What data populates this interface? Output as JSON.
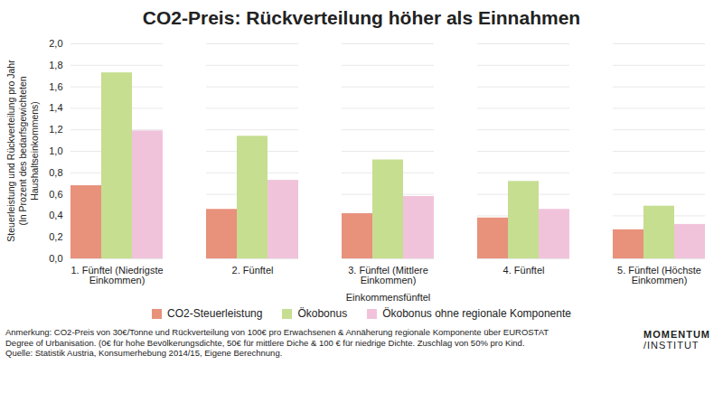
{
  "chart_data": {
    "type": "bar",
    "title": "CO2-Preis: Rückverteilung höher als Einnahmen",
    "y_label": "Steuerleistung und Rückverteilung pro Jahr\n(In Prozent des bedarfsgewichteten Haushaltseinkommens)",
    "x_label": "Einkommensfünftel",
    "categories": [
      "1. Fünftel (Niedrigste Einkommen)",
      "2. Fünftel",
      "3. Fünftel (Mittlere Einkommen)",
      "4. Fünftel",
      "5. Fünftel (Höchste Einkommen)"
    ],
    "series": [
      {
        "name": "CO2-Steuerleistung",
        "color": "#e8917b",
        "values": [
          0.68,
          0.46,
          0.42,
          0.38,
          0.27
        ]
      },
      {
        "name": "Ökobonus",
        "color": "#c6de90",
        "values": [
          1.73,
          1.14,
          0.92,
          0.72,
          0.49
        ]
      },
      {
        "name": "Ökobonus ohne regionale Komponente",
        "color": "#f1c3db",
        "values": [
          1.19,
          0.73,
          0.58,
          0.46,
          0.32
        ]
      }
    ],
    "ylim": [
      0,
      2
    ],
    "yticks": [
      {
        "value": 0,
        "label": "0,0"
      },
      {
        "value": 0.2,
        "label": "0,2"
      },
      {
        "value": 0.4,
        "label": "0,4"
      },
      {
        "value": 0.6,
        "label": "0,6"
      },
      {
        "value": 0.8,
        "label": "0,8"
      },
      {
        "value": 1,
        "label": "1,0"
      },
      {
        "value": 1.2,
        "label": "1,2"
      },
      {
        "value": 1.4,
        "label": "1,4"
      },
      {
        "value": 1.6,
        "label": "1,6"
      },
      {
        "value": 1.8,
        "label": "1,8"
      },
      {
        "value": 2,
        "label": "2,0"
      }
    ],
    "grid": true,
    "legend": "bottom",
    "note": "Anmerkung: CO2-Preis von 30€/Tonne und Rückverteilung von 100€ pro Erwachsenen & Annäherung regionale Komponente über EUROSTAT Degree of Urbanisation. (0€ für hohe Bevölkerungsdichte, 50€ für mittlere Diche & 100 € für niedrige Dichte. Zuschlag von 50% pro Kind.",
    "source": "Quelle: Statistik Austria, Konsumerhebung 2014/15, Eigene Berechnung.",
    "logo": [
      "MOMENTUM",
      "/INSTITUT"
    ]
  }
}
